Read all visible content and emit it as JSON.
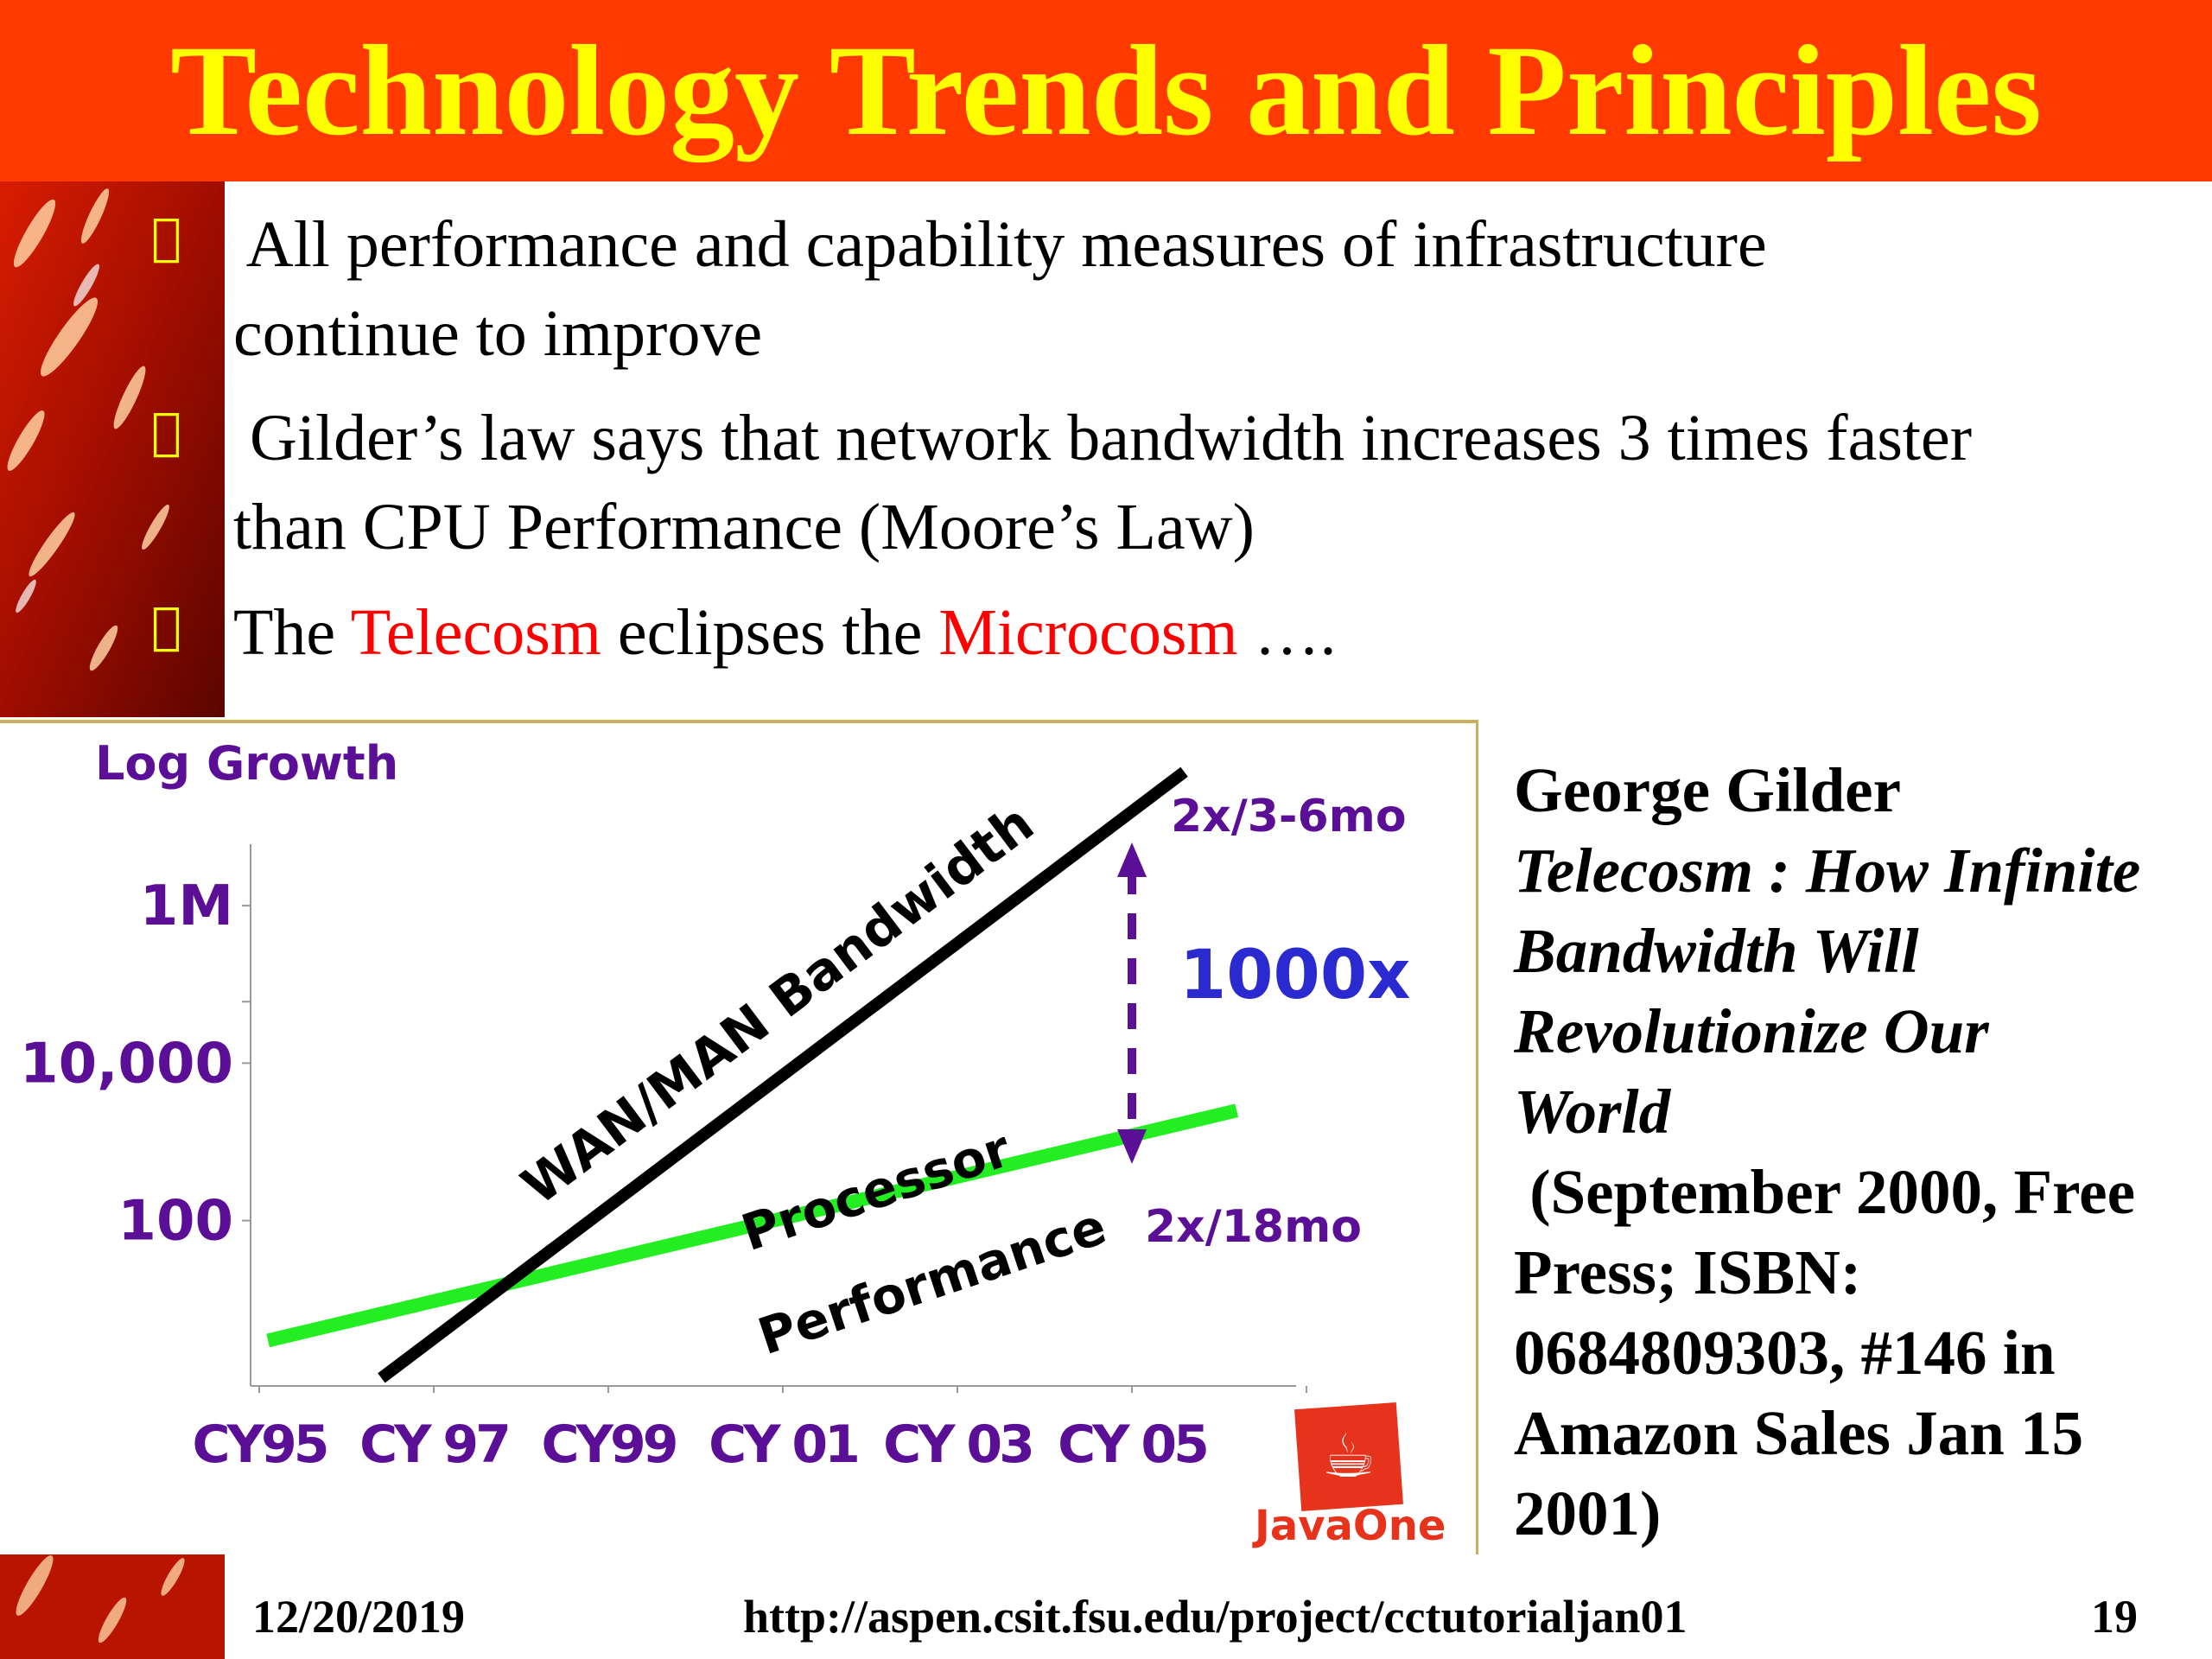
{
  "slide": {
    "title": "Technology Trends and Principles",
    "bullets": [
      {
        "line1": " All performance and capability measures of infrastructure",
        "line2": "continue to improve"
      },
      {
        "line1": " Gilder’s law says that network bandwidth increases 3 times faster",
        "line2": "than CPU Performance (Moore’s Law)"
      },
      {
        "pre": "The ",
        "red1": "Telecosm",
        "mid": " eclipses the ",
        "red2": "Microcosm",
        "post": " …."
      }
    ],
    "bullet_glyph": "",
    "book": {
      "author": "George Gilder",
      "title_lines": [
        "Telecosm : How Infinite",
        "Bandwidth Will",
        "Revolutionize Our",
        "World"
      ],
      "detail_lines": [
        " (September 2000, Free",
        "Press; ISBN:",
        "0684809303, #146 in",
        "Amazon Sales Jan 15",
        "2001)"
      ]
    },
    "footer": {
      "date": "12/20/2019",
      "url": "http://aspen.csit.fsu.edu/project/cctutorialjan01",
      "page": "19"
    },
    "colors": {
      "title_bg": "#ff3a00",
      "title_text": "#ffff00",
      "chart_purple": "#5a0f96",
      "chart_blue": "#2a2ad0",
      "processor_line": "#22ee22",
      "bandwidth_line": "#000000"
    }
  },
  "chart_data": {
    "type": "line",
    "ylabel": "Log Growth",
    "y_scale": "log",
    "y_ticks": [
      {
        "label": "1M",
        "value": 1000000
      },
      {
        "label": "10,000",
        "value": 10000
      },
      {
        "label": "100",
        "value": 100
      }
    ],
    "x_ticks": [
      "CY95",
      "CY 97",
      "CY99",
      "CY 01",
      "CY 03",
      "CY 05"
    ],
    "series": [
      {
        "name": "WAN/MAN Bandwidth",
        "rate": "2x/3-6mo",
        "points": [
          {
            "x": 1996.4,
            "y": 1
          },
          {
            "x": 2005.6,
            "y": 50000000
          }
        ]
      },
      {
        "name": "Processor Performance",
        "name_lines": [
          "Processor",
          "Performance"
        ],
        "rate": "2x/18mo",
        "points": [
          {
            "x": 1995.1,
            "y": 3
          },
          {
            "x": 2006.2,
            "y": 2500
          }
        ]
      }
    ],
    "annotations": [
      {
        "label": "1000x",
        "x": 2005
      }
    ],
    "logo": "JavaOne"
  }
}
